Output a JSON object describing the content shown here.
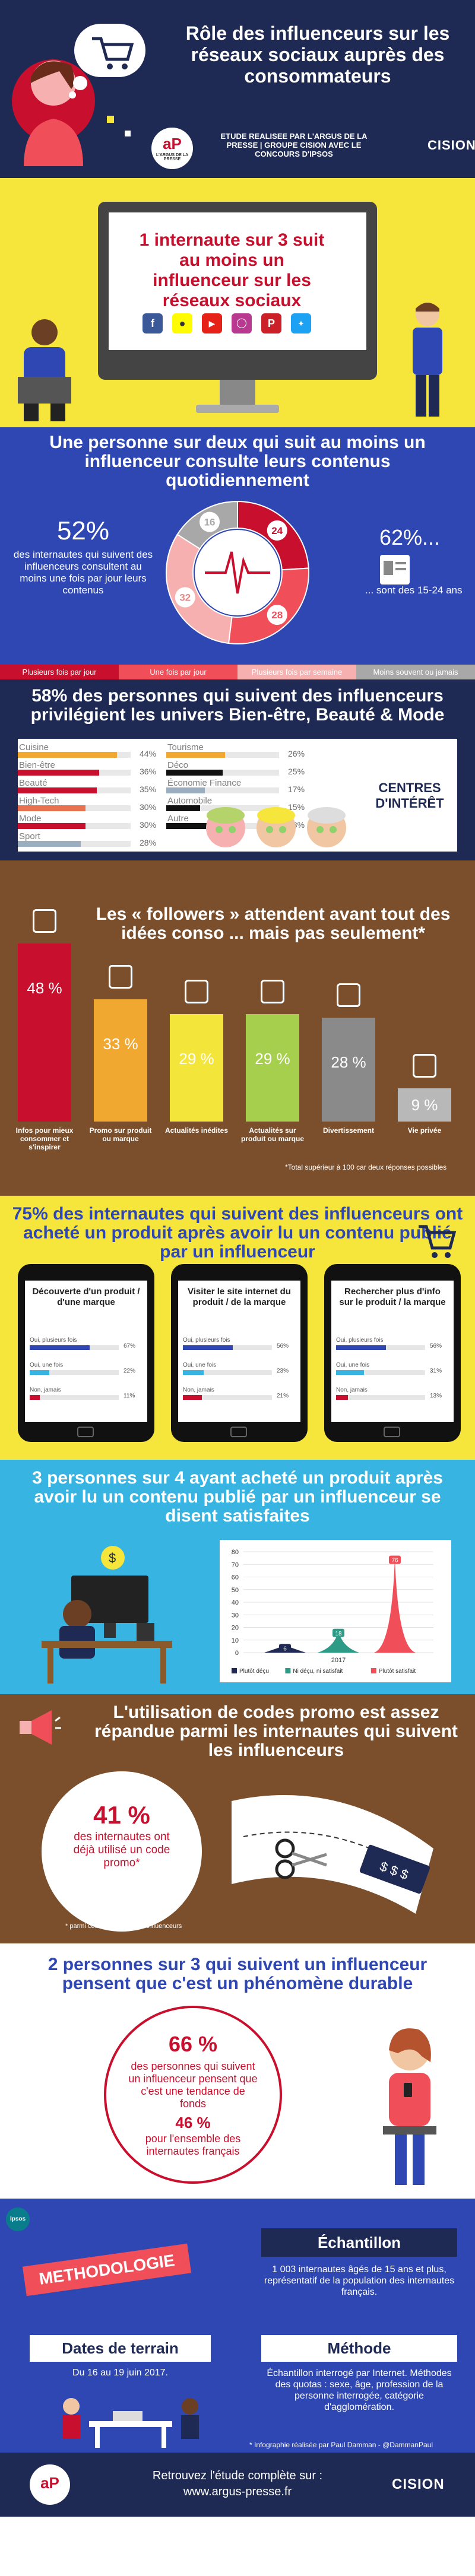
{
  "header": {
    "title": "Rôle des influenceurs sur les réseaux sociaux auprès des consommateurs",
    "argus_logo": "L'ARGUS DE LA PRESSE",
    "etude": "ETUDE REALISEE PAR L'ARGUS DE LA PRESSE | GROUPE CISION AVEC LE CONCOURS D'IPSOS",
    "cision": "CISION",
    "colors": {
      "navy": "#1e2a54",
      "red": "#c8102e"
    }
  },
  "intro": {
    "headline": "1 internaute sur 3 suit au moins un influenceur sur les réseaux sociaux",
    "social_icons": [
      "facebook-icon",
      "snapchat-icon",
      "youtube-icon",
      "instagram-icon",
      "pinterest-icon",
      "twitter-icon"
    ]
  },
  "consultation": {
    "title": "Une personne sur deux qui suit au moins un influenceur consulte leurs contenus quotidiennement",
    "left_pct": "52%",
    "left_text": "des internautes qui suivent des influenceurs consultent au moins une fois par jour leurs contenus",
    "right_pct": "62%...",
    "right_text": "... sont des 15-24 ans",
    "donut": [
      {
        "label": "Plusieurs fois par jour",
        "value": 24,
        "color": "#c8102e"
      },
      {
        "label": "Une fois par jour",
        "value": 28,
        "color": "#f04f5a"
      },
      {
        "label": "Plusieurs fois par semaine",
        "value": 32,
        "color": "#f7b0b0"
      },
      {
        "label": "Moins souvent ou jamais",
        "value": 16,
        "color": "#a8a8a8"
      }
    ],
    "legend": [
      "Plusieurs fois par jour",
      "Une fois par jour",
      "Plusieurs fois par semaine",
      "Moins souvent ou jamais"
    ]
  },
  "centres": {
    "title": "58% des personnes qui suivent des influenceurs privilégient les univers Bien-être, Beauté & Mode",
    "label": "CENTRES D'INTÉRÊT",
    "left": [
      {
        "name": "Cuisine",
        "pct": "44%",
        "value": 44,
        "color": "#f0a830"
      },
      {
        "name": "Bien-être",
        "pct": "36%",
        "value": 36,
        "color": "#c8102e"
      },
      {
        "name": "Beauté",
        "pct": "35%",
        "value": 35,
        "color": "#c8102e"
      },
      {
        "name": "High-Tech",
        "pct": "30%",
        "value": 30,
        "color": "#e8724f"
      },
      {
        "name": "Mode",
        "pct": "30%",
        "value": 30,
        "color": "#c8102e"
      },
      {
        "name": "Sport",
        "pct": "28%",
        "value": 28,
        "color": "#9aaebf"
      }
    ],
    "right": [
      {
        "name": "Tourisme",
        "pct": "26%",
        "value": 26,
        "color": "#f0a830"
      },
      {
        "name": "Déco",
        "pct": "25%",
        "value": 25,
        "color": "#111111"
      },
      {
        "name": "Économie Finance",
        "pct": "17%",
        "value": 17,
        "color": "#9aaebf"
      },
      {
        "name": "Automobile",
        "pct": "15%",
        "value": 15,
        "color": "#111111"
      },
      {
        "name": "Autre",
        "pct": "18%",
        "value": 18,
        "color": "#111111"
      }
    ]
  },
  "followers": {
    "title": "Les « followers » attendent avant tout des idées conso ... mais pas seulement*",
    "bars": [
      {
        "value": 48,
        "pct": "48 %",
        "label": "Infos pour mieux consommer et s'inspirer",
        "color": "#c8102e",
        "icon": "lightbulb-icon"
      },
      {
        "value": 33,
        "pct": "33 %",
        "label": "Promo sur produit ou marque",
        "color": "#f0a830",
        "icon": "percent-tag-icon"
      },
      {
        "value": 29,
        "pct": "29 %",
        "label": "Actualités inédites",
        "color": "#f3e53a",
        "icon": "newspaper-icon"
      },
      {
        "value": 29,
        "pct": "29 %",
        "label": "Actualités sur produit ou marque",
        "color": "#a5cf4c",
        "icon": "thumbs-up-icon"
      },
      {
        "value": 28,
        "pct": "28 %",
        "label": "Divertissement",
        "color": "#8a8a8a",
        "icon": "gift-icon"
      },
      {
        "value": 9,
        "pct": "9 %",
        "label": "Vie privée",
        "color": "#b8b8b8",
        "icon": "user-lock-icon"
      }
    ],
    "note": "*Total supérieur à 100 car deux réponses possibles"
  },
  "achat": {
    "title": "75% des internautes qui suivent des influenceurs ont acheté un produit après avoir lu un contenu publié par un influenceur",
    "phones": [
      {
        "title": "Découverte d'un produit / d'une marque",
        "rows": [
          {
            "l": "Oui, plusieurs fois",
            "p": "67%",
            "v": 67
          },
          {
            "l": "Oui, une fois",
            "p": "22%",
            "v": 22
          },
          {
            "l": "Non, jamais",
            "p": "11%",
            "v": 11
          }
        ]
      },
      {
        "title": "Visiter le site internet du produit / de la marque",
        "rows": [
          {
            "l": "Oui, plusieurs fois",
            "p": "56%",
            "v": 56
          },
          {
            "l": "Oui, une fois",
            "p": "23%",
            "v": 23
          },
          {
            "l": "Non, jamais",
            "p": "21%",
            "v": 21
          }
        ]
      },
      {
        "title": "Rechercher plus d'info sur le produit / la marque",
        "rows": [
          {
            "l": "Oui, plusieurs fois",
            "p": "56%",
            "v": 56
          },
          {
            "l": "Oui, une fois",
            "p": "31%",
            "v": 31
          },
          {
            "l": "Non, jamais",
            "p": "13%",
            "v": 13
          }
        ]
      }
    ]
  },
  "chart_data": {
    "type": "area",
    "title": "",
    "categories": [
      "2017"
    ],
    "series": [
      {
        "name": "Plutôt déçu",
        "values": [
          6
        ],
        "color": "#1e2a54"
      },
      {
        "name": "Ni déçu, ni satisfait",
        "values": [
          18
        ],
        "color": "#2e9b86"
      },
      {
        "name": "Plutôt satisfait",
        "values": [
          76
        ],
        "color": "#f04f5a"
      }
    ],
    "yticks": [
      "0",
      "10",
      "20",
      "30",
      "40",
      "50",
      "60",
      "70",
      "80"
    ],
    "ylim": [
      0,
      80
    ],
    "legend_position": "bottom",
    "grid": true
  },
  "satisfaits": {
    "title": "3 personnes sur 4 ayant acheté un produit après avoir lu un contenu publié par un influenceur se disent satisfaites"
  },
  "promo": {
    "title": "L'utilisation de codes promo est assez répandue parmi les internautes qui suivent les influenceurs",
    "pct": "41 %",
    "text": "des internautes ont déjà utilisé un code promo*",
    "note": "* parmi ceux qui suivent les influenceurs"
  },
  "durable": {
    "title": "2 personnes sur 3 qui suivent un influenceur pensent que c'est un phénomène durable",
    "pct1": "66 %",
    "text1": "des personnes qui suivent un influenceur pensent que c'est une tendance de fonds",
    "pct2": "46 %",
    "text2": "pour l'ensemble des internautes français"
  },
  "methodologie": {
    "ipsos": "Ipsos",
    "ribbon": "METHODOLOGIE",
    "echantillon_title": "Échantillon",
    "echantillon_text": "1 003 internautes âgés de 15 ans et plus, représentatif de la population des internautes français.",
    "dates_title": "Dates de terrain",
    "dates_text": "Du 16 au 19 juin 2017.",
    "methode_title": "Méthode",
    "methode_text": "Échantillon interrogé par Internet. Méthodes des quotas : sexe, âge, profession de la personne interrogée, catégorie d'agglomération.",
    "credit": "* Infographie réalisée par Paul Damman - @DammanPaul"
  },
  "footer": {
    "text": "Retrouvez l'étude complète sur :",
    "url": "www.argus-presse.fr",
    "cision": "CISION"
  }
}
